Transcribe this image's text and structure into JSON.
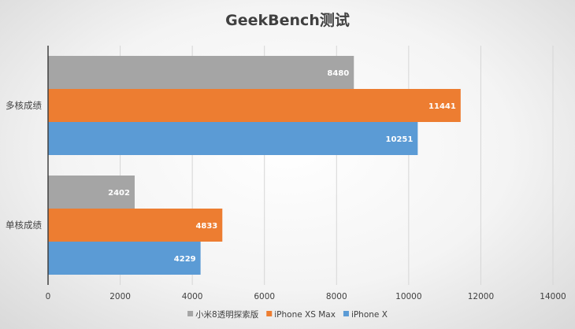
{
  "chart_data": {
    "type": "bar",
    "orientation": "horizontal",
    "title": "GeekBench测试",
    "categories": [
      "多核成绩",
      "单核成绩"
    ],
    "series": [
      {
        "name": "小米8透明探索版",
        "color": "#a5a5a5",
        "values": [
          8480,
          2402
        ]
      },
      {
        "name": "iPhone XS Max",
        "color": "#ed7d31",
        "values": [
          11441,
          4833
        ]
      },
      {
        "name": "iPhone X",
        "color": "#5b9bd5",
        "values": [
          10251,
          4229
        ]
      }
    ],
    "xticks": [
      0,
      2000,
      4000,
      6000,
      8000,
      10000,
      12000,
      14000
    ],
    "xlim": [
      0,
      14000
    ],
    "grid": true,
    "legend_position": "bottom"
  }
}
